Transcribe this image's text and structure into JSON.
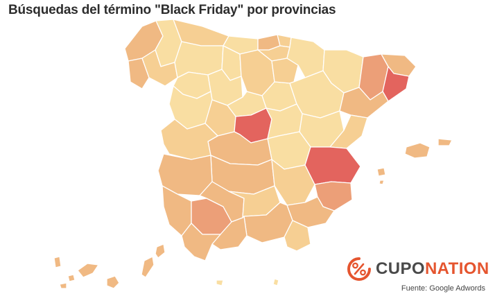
{
  "title": "Búsquedas del término \"Black Friday\" por provincias",
  "colors": {
    "background": "#ffffff",
    "low": "#f9dea2",
    "mid_low": "#f6cf93",
    "mid": "#f0b983",
    "high": "#ec9f78",
    "highest": "#e3645e",
    "brand_gray": "#4a4a4a",
    "brand_orange": "#e5552f"
  },
  "map": {
    "region": "Spain",
    "hotspots": [
      "Madrid",
      "Barcelona",
      "Valencia",
      "Sevilla"
    ],
    "levels": {
      "Madrid": "highest",
      "Barcelona": "highest",
      "Valencia": "highest",
      "Sevilla": "high",
      "Alicante": "high",
      "Lleida": "high",
      "Girona": "mid",
      "Tarragona": "mid",
      "Navarra": "low",
      "Huesca": "low",
      "Zaragoza": "low",
      "Islas Baleares": "mid",
      "Islas Canarias": "mid"
    }
  },
  "brand": {
    "logo": "percent-badge-icon",
    "name_part_1": "CUPO",
    "name_part_2": "NATION"
  },
  "source": "Fuente: Google Adwords"
}
